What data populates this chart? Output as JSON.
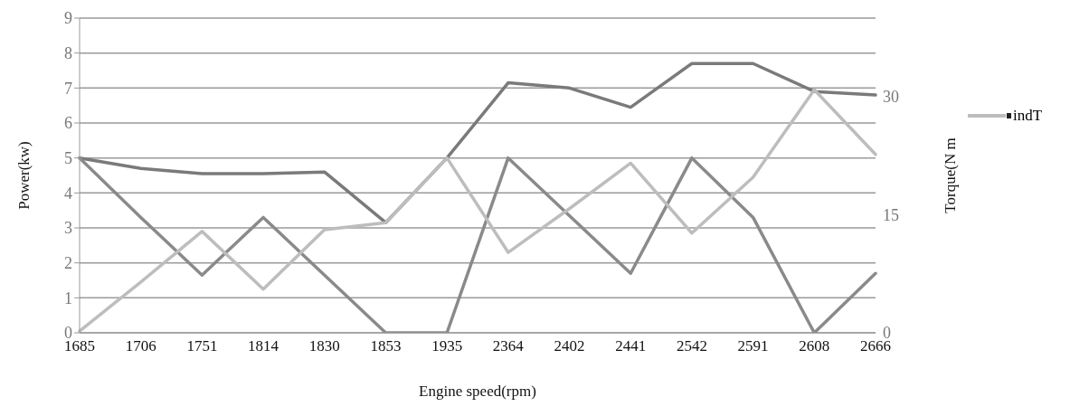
{
  "chart_data": {
    "type": "line",
    "xlabel": "Engine speed(rpm)",
    "ylabel": "Power(kw)",
    "y2label": "Torque(N m",
    "categories": [
      "1685",
      "1706",
      "1751",
      "1814",
      "1830",
      "1853",
      "1935",
      "2364",
      "2402",
      "2441",
      "2542",
      "2591",
      "2608",
      "2666"
    ],
    "series": [
      {
        "color": "#7a7a7a",
        "values": [
          5,
          4.7,
          4.55,
          4.55,
          4.6,
          3.15,
          5,
          7.15,
          7,
          6.45,
          7.7,
          7.7,
          6.9,
          6.8
        ]
      },
      {
        "color": "#8a8a8a",
        "values": [
          5,
          3.3,
          1.65,
          3.3,
          1.65,
          0,
          0,
          5,
          3.35,
          1.7,
          5,
          3.3,
          0,
          1.7
        ]
      },
      {
        "name": "indT",
        "color": "#bdbdbd",
        "values": [
          0.05,
          1.45,
          2.9,
          1.25,
          2.95,
          3.15,
          5,
          2.3,
          3.55,
          4.85,
          2.85,
          4.45,
          6.95,
          5.1
        ]
      }
    ],
    "ylim": [
      0,
      9
    ],
    "yticks": [
      0,
      1,
      2,
      3,
      4,
      5,
      6,
      7,
      8,
      9
    ],
    "y2lim": [
      0,
      40
    ],
    "y2ticks": [
      0,
      15,
      30
    ],
    "grid": "y",
    "legend": "right",
    "marker": "none",
    "line_style": "solid"
  }
}
